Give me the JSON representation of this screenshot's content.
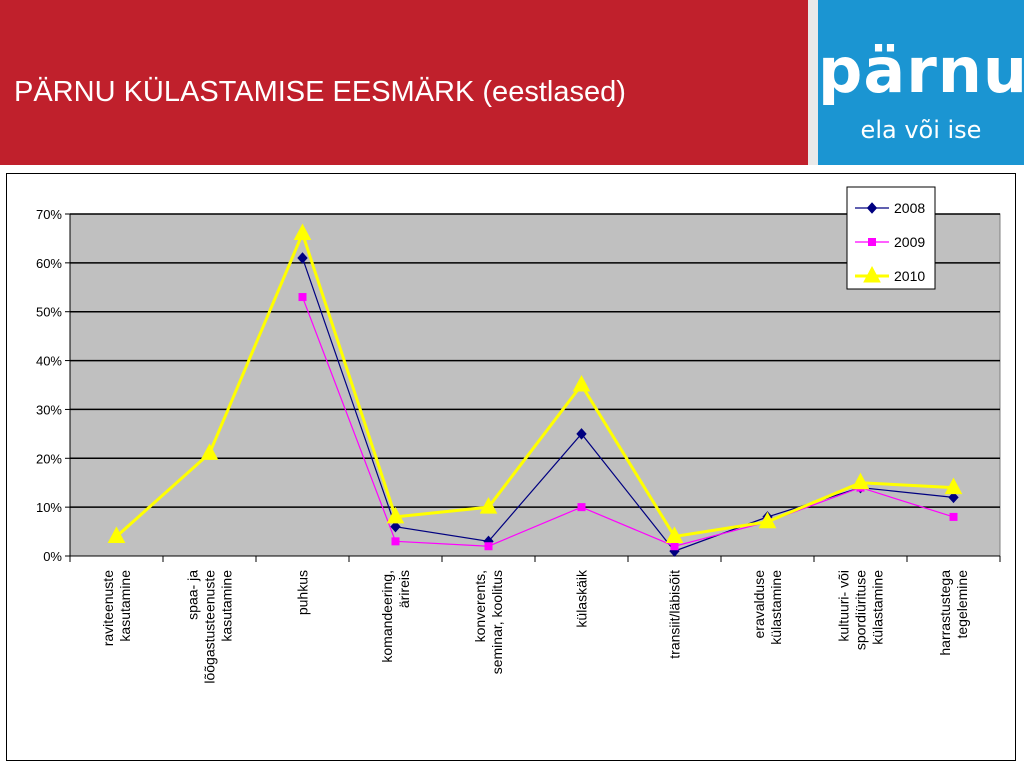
{
  "header": {
    "title": "PÄRNU KÜLASTAMISE EESMÄRK (eestlased)"
  },
  "logo": {
    "word": "pärnu",
    "tagline": "ela või ise"
  },
  "colors": {
    "header_bg": "#c0202c",
    "logo_bg": "#1b95d2",
    "plot_bg": "#c0c0c0",
    "series_2008": "#000080",
    "series_2009": "#ff00ff",
    "series_2010": "#ffff00"
  },
  "chart_data": {
    "type": "line",
    "title": "",
    "xlabel": "",
    "ylabel": "",
    "ylim": [
      0,
      70
    ],
    "y_ticks": [
      "0%",
      "10%",
      "20%",
      "30%",
      "40%",
      "50%",
      "60%",
      "70%"
    ],
    "grid": true,
    "legend": "top-right",
    "categories": [
      [
        "raviteenuste",
        "kasutamine"
      ],
      [
        "spaa- ja",
        "lõõgastusteenuste",
        "kasutamine"
      ],
      [
        "puhkus"
      ],
      [
        "komandeering,",
        "ärireis"
      ],
      [
        "konverents,",
        "seminar, koolitus"
      ],
      [
        "külaskäik"
      ],
      [
        "transiit/läbisõit"
      ],
      [
        "eravalduse",
        "külastamine"
      ],
      [
        "kultuuri- või",
        "spordiürituse",
        "külastamine"
      ],
      [
        "harrastustega",
        "tegelemine"
      ]
    ],
    "series": [
      {
        "name": "2008",
        "marker": "diamond",
        "color": "#000080",
        "values": [
          null,
          null,
          61,
          6,
          3,
          25,
          1,
          8,
          14,
          12
        ]
      },
      {
        "name": "2009",
        "marker": "square",
        "color": "#ff00ff",
        "values": [
          null,
          null,
          53,
          3,
          2,
          10,
          2,
          7,
          14,
          8
        ]
      },
      {
        "name": "2010",
        "marker": "triangle",
        "color": "#ffff00",
        "values": [
          4,
          21,
          66,
          8,
          10,
          35,
          4,
          7,
          15,
          14
        ]
      }
    ]
  }
}
